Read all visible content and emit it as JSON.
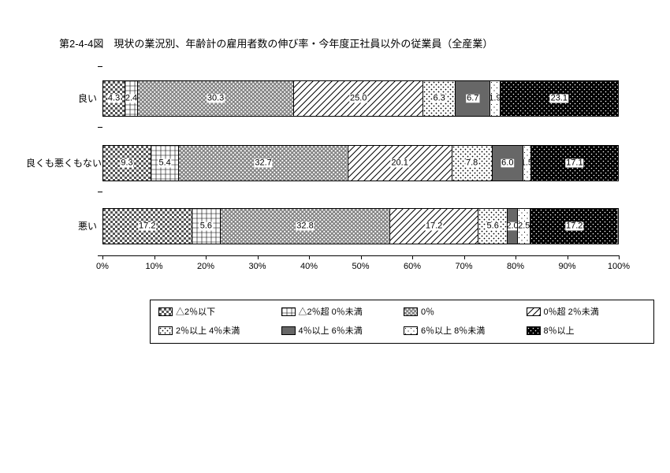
{
  "chart": {
    "type": "stacked-bar-horizontal",
    "title": "第2-4-4図　現状の業況別、年齢計の雇用者数の伸び率・今年度正社員以外の従業員（全産業）",
    "title_fontsize": 13,
    "background_color": "#ffffff",
    "categories": [
      "良い",
      "良くも悪くもない",
      "悪い"
    ],
    "series": [
      {
        "name": "△2％以下",
        "pattern": "checker-dark"
      },
      {
        "name": "△2％超 0％未満",
        "pattern": "grid-light"
      },
      {
        "name": "0％",
        "pattern": "crosshatch"
      },
      {
        "name": "0％超 2％未満",
        "pattern": "diag-lines"
      },
      {
        "name": "2％以上 4％未満",
        "pattern": "dots-sparse"
      },
      {
        "name": "4％以上 6％未満",
        "pattern": "grid-dense"
      },
      {
        "name": "6％以上 8％未満",
        "pattern": "dots-light"
      },
      {
        "name": "8％以上",
        "pattern": "dots-on-black"
      }
    ],
    "data": [
      [
        4.3,
        2.4,
        30.3,
        25.0,
        6.3,
        6.7,
        1.9,
        23.1
      ],
      [
        9.3,
        5.4,
        32.7,
        20.1,
        7.8,
        6.0,
        1.5,
        17.1
      ],
      [
        17.2,
        5.6,
        32.8,
        17.2,
        5.6,
        2.0,
        2.5,
        17.2
      ]
    ],
    "data_labels": [
      [
        "4.3",
        "2.4",
        "30.3",
        "25.0",
        "6.3",
        "6.7",
        "1.9",
        "23.1"
      ],
      [
        "9.3",
        "5.4",
        "32.7",
        "20.1",
        "7.8",
        "6.0",
        "1.5",
        "17.1"
      ],
      [
        "17.2",
        "5.6",
        "32.8",
        "17.2",
        "5.6",
        "2.0",
        "2.5",
        "17.2"
      ]
    ],
    "xaxis": {
      "min": 0,
      "max": 100,
      "step": 10,
      "suffix": "%",
      "tick_fontsize": 11
    },
    "label_fontsize": 12,
    "value_fontsize": 11,
    "colors": {
      "black": "#000000",
      "white": "#ffffff",
      "gray": "#808080"
    }
  }
}
